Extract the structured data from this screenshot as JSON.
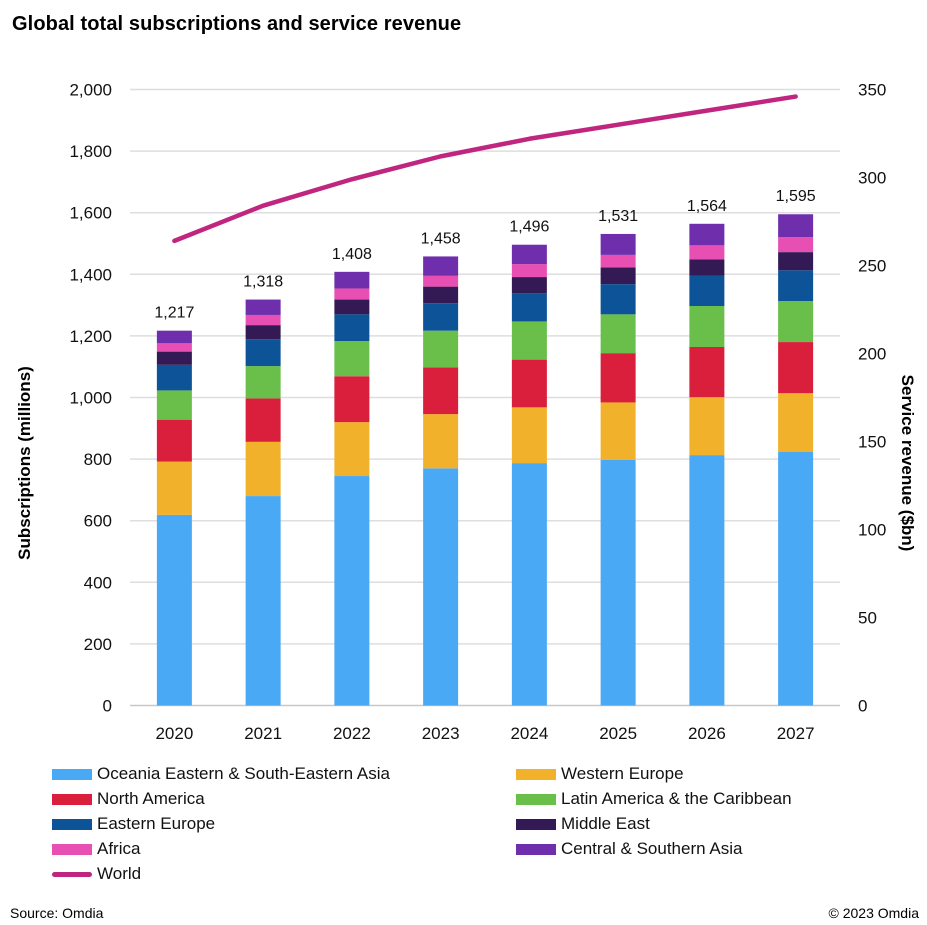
{
  "chart_data": {
    "type": "bar",
    "subtype": "stacked-bar-with-line",
    "title": "Global total subscriptions  and service revenue",
    "categories": [
      "2020",
      "2021",
      "2022",
      "2023",
      "2024",
      "2025",
      "2026",
      "2027"
    ],
    "ylabel": "Subscriptions (millions)",
    "ylabel_right": "Service revenue ($bn)",
    "ylim": [
      0,
      2000
    ],
    "yticks": [
      0,
      200,
      400,
      600,
      800,
      1000,
      1200,
      1400,
      1600,
      1800,
      2000
    ],
    "ytick_labels": [
      "0",
      "200",
      "400",
      "600",
      "800",
      "1,000",
      "1,200",
      "1,400",
      "1,600",
      "1,800",
      "2,000"
    ],
    "ylim_right": [
      0,
      350
    ],
    "yticks_right": [
      0,
      50,
      100,
      150,
      200,
      250,
      300,
      350
    ],
    "ytick_labels_right": [
      "0",
      "50",
      "100",
      "150",
      "200",
      "250",
      "300",
      "350"
    ],
    "grid": true,
    "legend_position": "bottom",
    "series": [
      {
        "name": "Oceania Eastern & South-Eastern Asia",
        "color": "#4aa9f4",
        "axis": "left",
        "values": [
          619,
          680,
          745,
          770,
          787,
          798,
          813,
          823
        ]
      },
      {
        "name": "Western Europe",
        "color": "#f2b12a",
        "axis": "left",
        "values": [
          173,
          176,
          175,
          176,
          181,
          186,
          188,
          191
        ]
      },
      {
        "name": "North America",
        "color": "#d91f3c",
        "axis": "left",
        "values": [
          136,
          141,
          149,
          152,
          155,
          160,
          163,
          166
        ]
      },
      {
        "name": "Latin America & the Caribbean",
        "color": "#6abf4b",
        "axis": "left",
        "values": [
          95,
          105,
          114,
          119,
          124,
          126,
          133,
          133
        ]
      },
      {
        "name": "Eastern Europe",
        "color": "#0d5397",
        "axis": "left",
        "values": [
          83,
          87,
          87,
          89,
          92,
          98,
          99,
          100
        ]
      },
      {
        "name": "Middle East",
        "color": "#331a55",
        "axis": "left",
        "values": [
          43,
          46,
          48,
          54,
          52,
          54,
          52,
          59
        ]
      },
      {
        "name": "Africa",
        "color": "#e84fb2",
        "axis": "left",
        "values": [
          27,
          33,
          36,
          35,
          42,
          41,
          46,
          49
        ]
      },
      {
        "name": "Central & Southern Asia",
        "color": "#6f2eab",
        "axis": "left",
        "values": [
          41,
          50,
          54,
          63,
          63,
          68,
          70,
          74
        ]
      }
    ],
    "line_series": {
      "name": "World",
      "color": "#c0267f",
      "axis": "right",
      "values": [
        264,
        284,
        299,
        312,
        322,
        330,
        338,
        346
      ]
    },
    "totals": [
      1217,
      1318,
      1408,
      1458,
      1496,
      1531,
      1564,
      1595
    ],
    "total_labels": [
      "1,217",
      "1,318",
      "1,408",
      "1,458",
      "1,496",
      "1,531",
      "1,564",
      "1,595"
    ]
  },
  "legend": {
    "items": [
      {
        "label": "Oceania Eastern & South-Eastern Asia",
        "color": "#4aa9f4",
        "kind": "box"
      },
      {
        "label": "Western Europe",
        "color": "#f2b12a",
        "kind": "box"
      },
      {
        "label": "North America",
        "color": "#d91f3c",
        "kind": "box"
      },
      {
        "label": "Latin America & the Caribbean",
        "color": "#6abf4b",
        "kind": "box"
      },
      {
        "label": "Eastern Europe",
        "color": "#0d5397",
        "kind": "box"
      },
      {
        "label": "Middle East",
        "color": "#331a55",
        "kind": "box"
      },
      {
        "label": "Africa",
        "color": "#e84fb2",
        "kind": "box"
      },
      {
        "label": "Central & Southern Asia",
        "color": "#6f2eab",
        "kind": "box"
      },
      {
        "label": "World",
        "color": "#c0267f",
        "kind": "line"
      }
    ]
  },
  "footer": {
    "source": "Source: Omdia",
    "copyright": "© 2023 Omdia"
  }
}
